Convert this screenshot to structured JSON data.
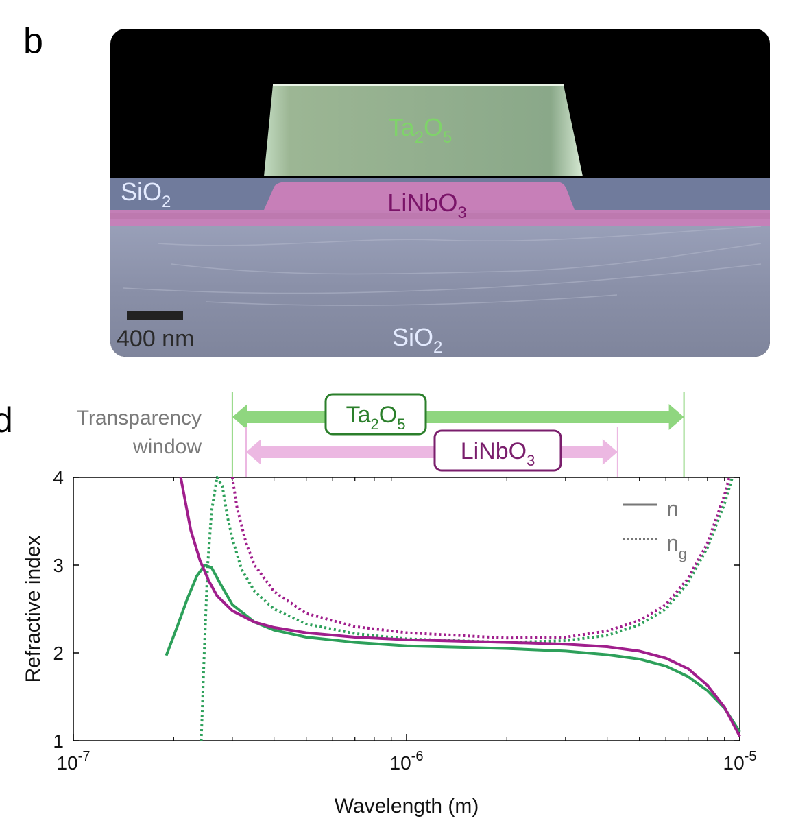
{
  "panel_b": {
    "label": "b",
    "materials": {
      "top": "Ta₂O₅",
      "top_base": "Ta",
      "top_sub1": "2",
      "top_mid": "O",
      "top_sub2": "5",
      "middle_base": "LiNbO",
      "middle_sub": "3",
      "cladding_base": "SiO",
      "cladding_sub": "2",
      "substrate_base": "SiO",
      "substrate_sub": "2"
    },
    "scale_bar": "400 nm",
    "colors": {
      "ta2o5": "#7fcf6a",
      "linbo3": "#b0428c",
      "sio2": "#c7d3ea"
    }
  },
  "panel_d": {
    "label": "d",
    "transparency": {
      "label_line1": "Transparency",
      "label_line2": "window",
      "ta2o5": {
        "base": "Ta",
        "sub1": "2",
        "mid": "O",
        "sub2": "5",
        "range_m": [
          3e-07,
          6.8e-06
        ],
        "color": "#8fd67f",
        "edge": "#2b7f2b"
      },
      "linbo3": {
        "base": "LiNbO",
        "sub": "3",
        "range_m": [
          3.3e-07,
          4.3e-06
        ],
        "color": "#ecb8e2",
        "edge": "#7a1e6c"
      }
    },
    "legend": {
      "n": "n",
      "ng_base": "n",
      "ng_sub": "g"
    }
  },
  "chart_data": {
    "type": "line",
    "xlabel": "Wavelength (m)",
    "ylabel": "Refractive index",
    "xscale": "log",
    "xlim": [
      1e-07,
      1e-05
    ],
    "ylim": [
      1,
      4
    ],
    "xticks": [
      {
        "base": "10",
        "exp": "-7",
        "v": 1e-07
      },
      {
        "base": "10",
        "exp": "-6",
        "v": 1e-06
      },
      {
        "base": "10",
        "exp": "-5",
        "v": 1e-05
      }
    ],
    "yticks": [
      1,
      2,
      3,
      4
    ],
    "legend_position": "top-right",
    "colors": {
      "Ta2O5": "#2da05a",
      "LiNbO3": "#a01e8c"
    },
    "series": [
      {
        "material": "Ta2O5",
        "kind": "n",
        "style": "solid",
        "x": [
          1.9e-07,
          2.05e-07,
          2.2e-07,
          2.35e-07,
          2.48e-07,
          2.6e-07,
          2.75e-07,
          3e-07,
          3.5e-07,
          4e-07,
          5e-07,
          7e-07,
          1e-06,
          2e-06,
          3e-06,
          4e-06,
          5e-06,
          6e-06,
          7e-06,
          8e-06,
          9e-06,
          1e-05
        ],
        "y": [
          1.97,
          2.3,
          2.62,
          2.88,
          3.0,
          2.97,
          2.8,
          2.55,
          2.35,
          2.26,
          2.18,
          2.12,
          2.08,
          2.05,
          2.02,
          1.98,
          1.93,
          1.85,
          1.73,
          1.57,
          1.37,
          1.1
        ]
      },
      {
        "material": "Ta2O5",
        "kind": "ng",
        "style": "dotted",
        "x": [
          2.42e-07,
          2.47e-07,
          2.53e-07,
          2.6e-07,
          2.7e-07,
          2.8e-07,
          2.9e-07,
          3e-07,
          3.2e-07,
          3.5e-07,
          4e-07,
          5e-07,
          7e-07,
          1e-06,
          2e-06,
          3e-06,
          4e-06,
          5e-06,
          6e-06,
          7e-06,
          8e-06,
          9e-06,
          9.5e-06
        ],
        "y": [
          1.0,
          2.0,
          3.0,
          3.62,
          4.0,
          3.9,
          3.55,
          3.3,
          2.95,
          2.7,
          2.5,
          2.33,
          2.22,
          2.16,
          2.12,
          2.14,
          2.2,
          2.32,
          2.5,
          2.8,
          3.2,
          3.7,
          4.0
        ]
      },
      {
        "material": "LiNbO3",
        "kind": "n",
        "style": "solid",
        "x": [
          2.1e-07,
          2.25e-07,
          2.4e-07,
          2.55e-07,
          2.7e-07,
          3e-07,
          3.5e-07,
          4e-07,
          5e-07,
          7e-07,
          1e-06,
          2e-06,
          3e-06,
          4e-06,
          5e-06,
          6e-06,
          7e-06,
          8e-06,
          9e-06,
          1e-05
        ],
        "y": [
          4.0,
          3.4,
          3.05,
          2.82,
          2.65,
          2.48,
          2.35,
          2.29,
          2.23,
          2.18,
          2.15,
          2.12,
          2.1,
          2.07,
          2.02,
          1.94,
          1.82,
          1.63,
          1.38,
          1.05
        ]
      },
      {
        "material": "LiNbO3",
        "kind": "ng",
        "style": "dotted",
        "x": [
          3e-07,
          3.1e-07,
          3.3e-07,
          3.5e-07,
          4e-07,
          5e-07,
          7e-07,
          1e-06,
          2e-06,
          3e-06,
          4e-06,
          5e-06,
          6e-06,
          7e-06,
          8e-06,
          9e-06,
          9.3e-06
        ],
        "y": [
          4.0,
          3.65,
          3.25,
          3.0,
          2.7,
          2.45,
          2.3,
          2.23,
          2.17,
          2.18,
          2.25,
          2.37,
          2.55,
          2.85,
          3.25,
          3.8,
          4.0
        ]
      }
    ]
  }
}
